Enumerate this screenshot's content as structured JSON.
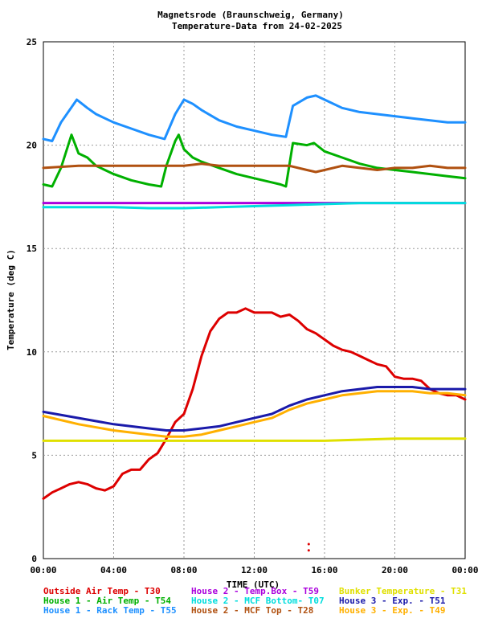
{
  "chart_data": {
    "type": "line",
    "title": "Magnetsrode (Braunschweig, Germany)",
    "subtitle": "Temperature-Data from 24-02-2025",
    "xlabel": "TIME (UTC)",
    "ylabel": "Temperature (deg C)",
    "ylim": [
      0,
      25
    ],
    "xlim": [
      0,
      24
    ],
    "yticks": [
      0,
      5,
      10,
      15,
      20,
      25
    ],
    "xticks": [
      0,
      4,
      8,
      12,
      16,
      20,
      24
    ],
    "xtick_labels": [
      "00:00",
      "04:00",
      "08:00",
      "12:00",
      "16:00",
      "20:00",
      "00:00"
    ],
    "grid": true,
    "legend_position": "bottom",
    "series": [
      {
        "name": "Outside Air Temp",
        "code": "T30",
        "color": "#dd0000",
        "x": [
          0,
          0.5,
          1,
          1.5,
          2,
          2.5,
          3,
          3.5,
          4,
          4.5,
          5,
          5.5,
          6,
          6.5,
          7,
          7.5,
          8,
          8.5,
          9,
          9.5,
          10,
          10.5,
          11,
          11.5,
          12,
          12.5,
          13,
          13.5,
          14,
          14.5,
          15,
          15.5,
          16,
          16.5,
          17,
          17.5,
          18,
          18.5,
          19,
          19.5,
          20,
          20.5,
          21,
          21.5,
          22,
          22.5,
          23,
          23.5,
          24
        ],
        "y": [
          2.9,
          3.2,
          3.4,
          3.6,
          3.7,
          3.6,
          3.4,
          3.3,
          3.5,
          4.1,
          4.3,
          4.3,
          4.8,
          5.1,
          5.8,
          6.6,
          7.0,
          8.2,
          9.8,
          11.0,
          11.6,
          11.9,
          11.9,
          12.1,
          11.9,
          11.9,
          11.9,
          11.7,
          11.8,
          11.5,
          11.1,
          10.9,
          10.6,
          10.3,
          10.1,
          10.0,
          9.8,
          9.6,
          9.4,
          9.3,
          8.8,
          8.7,
          8.7,
          8.6,
          8.2,
          8.0,
          7.9,
          7.9,
          7.7
        ]
      },
      {
        "name": "House 1 - Air Temp",
        "code": "T54",
        "color": "#00b000",
        "x": [
          0,
          0.5,
          1,
          1.6,
          2,
          2.5,
          3,
          4,
          5,
          6,
          6.7,
          7,
          7.5,
          7.7,
          8,
          8.5,
          9,
          10,
          11,
          12,
          13,
          13.5,
          13.8,
          14.2,
          15,
          15.4,
          16,
          17,
          18,
          19,
          20,
          21,
          22,
          23,
          24
        ],
        "y": [
          18.1,
          18.0,
          18.9,
          20.5,
          19.6,
          19.4,
          19.0,
          18.6,
          18.3,
          18.1,
          18.0,
          19.0,
          20.2,
          20.5,
          19.8,
          19.4,
          19.2,
          18.9,
          18.6,
          18.4,
          18.2,
          18.1,
          18.0,
          20.1,
          20.0,
          20.1,
          19.7,
          19.4,
          19.1,
          18.9,
          18.8,
          18.7,
          18.6,
          18.5,
          18.4
        ]
      },
      {
        "name": "House 1 - Rack Temp",
        "code": "T55",
        "color": "#1e90ff",
        "x": [
          0,
          0.5,
          1,
          1.9,
          2.5,
          3,
          4,
          5,
          6,
          6.9,
          7.5,
          8,
          8.5,
          9,
          10,
          11,
          12,
          13,
          13.8,
          14.2,
          15,
          15.5,
          16,
          17,
          18,
          19,
          20,
          21,
          22,
          23,
          24
        ],
        "y": [
          20.3,
          20.2,
          21.1,
          22.2,
          21.8,
          21.5,
          21.1,
          20.8,
          20.5,
          20.3,
          21.5,
          22.2,
          22.0,
          21.7,
          21.2,
          20.9,
          20.7,
          20.5,
          20.4,
          21.9,
          22.3,
          22.4,
          22.2,
          21.8,
          21.6,
          21.5,
          21.4,
          21.3,
          21.2,
          21.1,
          21.1
        ]
      },
      {
        "name": "House 2 - Temp.Box",
        "code": "T59",
        "color": "#aa00dd",
        "x": [
          0,
          4,
          8,
          12,
          16,
          20,
          24
        ],
        "y": [
          17.2,
          17.2,
          17.2,
          17.2,
          17.2,
          17.2,
          17.2
        ]
      },
      {
        "name": "House 2 - MCF Bottom",
        "code": "T07",
        "color": "#00dddd",
        "x": [
          0,
          2,
          4,
          6,
          8,
          10,
          12,
          14,
          16,
          18,
          20,
          22,
          24
        ],
        "y": [
          17.0,
          17.0,
          17.0,
          16.95,
          16.95,
          17.0,
          17.05,
          17.1,
          17.15,
          17.2,
          17.2,
          17.2,
          17.2
        ]
      },
      {
        "name": "House 2 - MCF Top",
        "code": "T28",
        "color": "#b05010",
        "x": [
          0,
          2,
          4,
          6,
          8,
          9,
          10,
          12,
          13,
          14,
          15,
          15.5,
          16,
          17,
          18,
          19,
          20,
          21,
          22,
          23,
          24
        ],
        "y": [
          18.9,
          19.0,
          19.0,
          19.0,
          19.0,
          19.1,
          19.0,
          19.0,
          19.0,
          19.0,
          18.8,
          18.7,
          18.8,
          19.0,
          18.9,
          18.8,
          18.9,
          18.9,
          19.0,
          18.9,
          18.9
        ]
      },
      {
        "name": "Bunker Temperature",
        "code": "T31",
        "color": "#e0e000",
        "x": [
          0,
          4,
          8,
          12,
          16,
          20,
          24
        ],
        "y": [
          5.7,
          5.7,
          5.7,
          5.7,
          5.7,
          5.8,
          5.8
        ]
      },
      {
        "name": "House 3 - Exp.",
        "code": "T51",
        "color": "#1a1aaa",
        "x": [
          0,
          2,
          4,
          6,
          7,
          8,
          9,
          10,
          11,
          12,
          13,
          14,
          15,
          16,
          17,
          18,
          19,
          20,
          21,
          22,
          23,
          24
        ],
        "y": [
          7.1,
          6.8,
          6.5,
          6.3,
          6.2,
          6.2,
          6.3,
          6.4,
          6.6,
          6.8,
          7.0,
          7.4,
          7.7,
          7.9,
          8.1,
          8.2,
          8.3,
          8.3,
          8.3,
          8.2,
          8.2,
          8.2
        ]
      },
      {
        "name": "House 3 - Exp.",
        "code": "T49",
        "color": "#ffb000",
        "x": [
          0,
          2,
          4,
          6,
          7,
          8,
          9,
          10,
          11,
          12,
          13,
          14,
          15,
          16,
          17,
          18,
          19,
          20,
          21,
          22,
          23,
          24
        ],
        "y": [
          6.9,
          6.5,
          6.2,
          6.0,
          5.9,
          5.9,
          6.0,
          6.2,
          6.4,
          6.6,
          6.8,
          7.2,
          7.5,
          7.7,
          7.9,
          8.0,
          8.1,
          8.1,
          8.1,
          8.0,
          8.0,
          7.9
        ]
      }
    ],
    "outliers": [
      {
        "series": "Outside Air Temp",
        "x": 15.1,
        "y": 0.4
      },
      {
        "series": "Outside Air Temp",
        "x": 15.1,
        "y": 0.7
      }
    ],
    "legend": [
      {
        "text": "Outside Air Temp    - T30",
        "color": "#dd0000"
      },
      {
        "text": "House 2 - Temp.Box  - T59",
        "color": "#aa00dd"
      },
      {
        "text": "Bunker Temperature  - T31",
        "color": "#e0e000"
      },
      {
        "text": "House 1 - Air  Temp - T54",
        "color": "#00b000"
      },
      {
        "text": "House 2 - MCF Bottom- T07",
        "color": "#00dddd"
      },
      {
        "text": "House 3 - Exp.      - T51",
        "color": "#1a1aaa"
      },
      {
        "text": "House 1 - Rack Temp - T55",
        "color": "#1e90ff"
      },
      {
        "text": "House 2 - MCF Top   - T28",
        "color": "#b05010"
      },
      {
        "text": "House 3 - Exp.      - T49",
        "color": "#ffb000"
      }
    ]
  }
}
